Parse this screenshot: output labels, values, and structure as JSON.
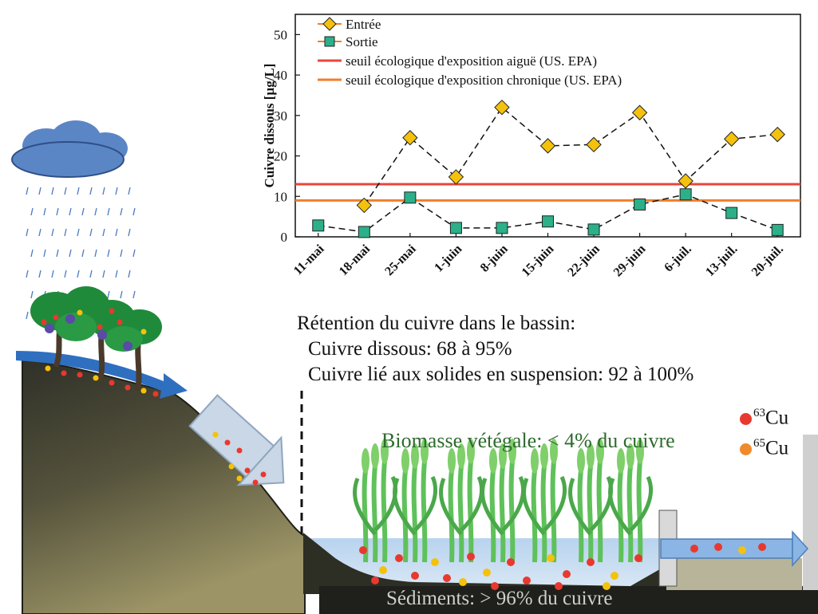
{
  "chart_data": {
    "type": "line",
    "ylabel": "Cuivre dissous [µg/L]",
    "xlabel": "",
    "categories": [
      "11-mai",
      "18-mai",
      "25-mai",
      "1-juin",
      "8-juin",
      "15-juin",
      "22-juin",
      "29-juin",
      "6-juil.",
      "13-juil.",
      "20-juil."
    ],
    "ylim": [
      0,
      55
    ],
    "yticks": [
      0,
      10,
      20,
      30,
      40,
      50
    ],
    "grid": false,
    "legend_position": "top-left",
    "series": [
      {
        "name": "Entrée",
        "marker": "diamond",
        "color": "#f4c20d",
        "values": [
          null,
          7.8,
          24.5,
          14.8,
          32,
          22.5,
          22.8,
          30.7,
          13.8,
          24.2,
          25.3
        ]
      },
      {
        "name": "Sortie",
        "marker": "square",
        "color": "#2bb08a",
        "values": [
          2.8,
          1.2,
          9.7,
          2.2,
          2.2,
          3.8,
          1.8,
          8.0,
          10.5,
          5.9,
          1.7
        ]
      }
    ],
    "reference_lines": [
      {
        "name": "seuil écologique d'exposition aiguë (US. EPA)",
        "value": 13,
        "color": "#e8453c"
      },
      {
        "name": "seuil écologique d'exposition chronique (US. EPA)",
        "value": 9,
        "color": "#f07f2a"
      }
    ]
  },
  "diagram": {
    "retention_title": "Rétention du cuivre dans le bassin:",
    "retention_dissolved": "Cuivre dissous: 68 à 95%",
    "retention_solids": "Cuivre lié aux solides en suspension: 92 à 100%",
    "biomass": "Biomasse vétégale: < 4% du cuivre",
    "sediments": "Sédiments: > 96% du cuivre",
    "isotopes": [
      {
        "mass": "63",
        "symbol": "Cu",
        "color": "#e8392f"
      },
      {
        "mass": "65",
        "symbol": "Cu",
        "color": "#f08a2c"
      }
    ]
  }
}
